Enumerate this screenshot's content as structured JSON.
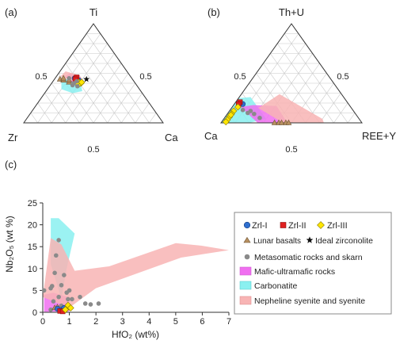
{
  "colors": {
    "zrl1": "#2f6fcf",
    "zrl2": "#e02020",
    "zrl3": "#ffe600",
    "lunar": "#b89060",
    "metasomatic": "#8a8a8a",
    "mafic": "#f06ef0",
    "carbonatite": "#8af0f0",
    "nepheline": "#f8b4b4",
    "grid": "#c8c8c8"
  },
  "panels": {
    "a": {
      "label": "(a)",
      "vertex_top": "Ti",
      "vertex_left": "Zr",
      "vertex_right": "Ca",
      "tick_left": "0.5",
      "tick_right": "0.5",
      "tick_bottom": "0.5"
    },
    "b": {
      "label": "(b)",
      "vertex_top": "Th+U",
      "vertex_left": "Ca",
      "vertex_right": "REE+Y",
      "tick_left": "0.5",
      "tick_right": "0.5",
      "tick_bottom": "0.5"
    },
    "c": {
      "label": "(c)"
    }
  },
  "legend": {
    "zrl1": "Zrl-I",
    "zrl2": "Zrl-II",
    "zrl3": "Zrl-III",
    "lunar": "Lunar basalts",
    "ideal": "Ideal zirconolite",
    "metasomatic": "Metasomatic rocks and skarn",
    "mafic": "Mafic-ultramafic rocks",
    "carbonatite": "Carbonatite",
    "nepheline": "Nepheline syenite and syenite"
  },
  "chart_data": [
    {
      "type": "scatter",
      "panel": "a",
      "ternary": true,
      "components": [
        "Zr",
        "Ti",
        "Ca"
      ],
      "series": [
        {
          "name": "Zrl-I",
          "points": [
            [
              0.4,
              0.44,
              0.16
            ],
            [
              0.41,
              0.45,
              0.14
            ],
            [
              0.39,
              0.43,
              0.18
            ]
          ]
        },
        {
          "name": "Zrl-II",
          "points": [
            [
              0.4,
              0.45,
              0.15
            ],
            [
              0.39,
              0.46,
              0.15
            ],
            [
              0.41,
              0.44,
              0.15
            ]
          ]
        },
        {
          "name": "Zrl-III",
          "points": [
            [
              0.4,
              0.41,
              0.19
            ],
            [
              0.39,
              0.4,
              0.21
            ],
            [
              0.41,
              0.39,
              0.2
            ],
            [
              0.42,
              0.4,
              0.18
            ],
            [
              0.38,
              0.41,
              0.21
            ]
          ]
        },
        {
          "name": "Lunar basalts",
          "points": [
            [
              0.52,
              0.44,
              0.04
            ],
            [
              0.5,
              0.43,
              0.07
            ],
            [
              0.49,
              0.45,
              0.06
            ],
            [
              0.47,
              0.41,
              0.12
            ],
            [
              0.46,
              0.43,
              0.11
            ]
          ]
        },
        {
          "name": "Ideal zirconolite",
          "points": [
            [
              0.33,
              0.44,
              0.23
            ]
          ]
        },
        {
          "name": "Metasomatic rocks and skarn",
          "points": [
            [
              0.45,
              0.45,
              0.1
            ],
            [
              0.44,
              0.4,
              0.16
            ],
            [
              0.43,
              0.37,
              0.2
            ],
            [
              0.46,
              0.38,
              0.16
            ],
            [
              0.41,
              0.42,
              0.17
            ]
          ]
        }
      ],
      "fields": [
        {
          "name": "Carbonatite",
          "polygon": [
            [
              0.56,
              0.34,
              0.1
            ],
            [
              0.52,
              0.42,
              0.06
            ],
            [
              0.45,
              0.45,
              0.1
            ],
            [
              0.4,
              0.38,
              0.22
            ],
            [
              0.42,
              0.32,
              0.26
            ],
            [
              0.5,
              0.3,
              0.2
            ]
          ]
        },
        {
          "name": "Mafic-ultramafic rocks",
          "polygon": [
            [
              0.47,
              0.47,
              0.06
            ],
            [
              0.42,
              0.5,
              0.08
            ],
            [
              0.36,
              0.46,
              0.18
            ],
            [
              0.4,
              0.41,
              0.19
            ],
            [
              0.46,
              0.41,
              0.13
            ]
          ]
        },
        {
          "name": "Nepheline syenite and syenite",
          "polygon": [
            [
              0.5,
              0.47,
              0.03
            ],
            [
              0.44,
              0.52,
              0.04
            ],
            [
              0.36,
              0.48,
              0.16
            ],
            [
              0.36,
              0.44,
              0.2
            ],
            [
              0.44,
              0.42,
              0.14
            ]
          ]
        }
      ]
    },
    {
      "type": "scatter",
      "panel": "b",
      "ternary": true,
      "components": [
        "Ca",
        "Th+U",
        "REE+Y"
      ],
      "series": [
        {
          "name": "Zrl-I",
          "points": [
            [
              0.77,
              0.2,
              0.03
            ],
            [
              0.75,
              0.19,
              0.06
            ],
            [
              0.79,
              0.17,
              0.04
            ]
          ]
        },
        {
          "name": "Zrl-II",
          "points": [
            [
              0.76,
              0.21,
              0.03
            ],
            [
              0.78,
              0.19,
              0.03
            ]
          ]
        },
        {
          "name": "Zrl-III",
          "points": [
            [
              0.8,
              0.16,
              0.04
            ],
            [
              0.85,
              0.12,
              0.03
            ],
            [
              0.88,
              0.09,
              0.03
            ],
            [
              0.91,
              0.06,
              0.03
            ],
            [
              0.94,
              0.03,
              0.03
            ],
            [
              0.96,
              0.01,
              0.03
            ],
            [
              0.89,
              0.08,
              0.03
            ]
          ]
        },
        {
          "name": "Lunar basalts",
          "points": [
            [
              0.62,
              0.0,
              0.38
            ],
            [
              0.59,
              0.0,
              0.41
            ],
            [
              0.57,
              0.0,
              0.43
            ],
            [
              0.54,
              0.0,
              0.46
            ],
            [
              0.52,
              0.0,
              0.48
            ]
          ]
        },
        {
          "name": "Metasomatic rocks and skarn",
          "points": [
            [
              0.78,
              0.13,
              0.09
            ],
            [
              0.76,
              0.1,
              0.14
            ],
            [
              0.72,
              0.09,
              0.19
            ],
            [
              0.7,
              0.05,
              0.25
            ],
            [
              0.73,
              0.12,
              0.15
            ]
          ]
        }
      ],
      "fields": [
        {
          "name": "Carbonatite",
          "polygon": [
            [
              1.0,
              0.0,
              0.0
            ],
            [
              0.75,
              0.25,
              0.0
            ],
            [
              0.66,
              0.26,
              0.08
            ],
            [
              0.66,
              0.04,
              0.3
            ],
            [
              0.8,
              0.0,
              0.2
            ]
          ]
        },
        {
          "name": "Mafic-ultramafic rocks",
          "polygon": [
            [
              0.78,
              0.16,
              0.06
            ],
            [
              0.68,
              0.18,
              0.14
            ],
            [
              0.52,
              0.17,
              0.31
            ],
            [
              0.53,
              0.0,
              0.47
            ],
            [
              0.74,
              0.0,
              0.26
            ]
          ]
        },
        {
          "name": "Nepheline syenite and syenite",
          "polygon": [
            [
              0.66,
              0.15,
              0.19
            ],
            [
              0.44,
              0.29,
              0.27
            ],
            [
              0.26,
              0.04,
              0.7
            ],
            [
              0.27,
              0.0,
              0.73
            ],
            [
              0.56,
              0.0,
              0.44
            ]
          ]
        }
      ]
    },
    {
      "type": "scatter",
      "panel": "c",
      "xlabel": "HfO₂ (wt%)",
      "ylabel": "Nb₂O₅ (wt %)",
      "xlim": [
        0,
        7
      ],
      "ylim": [
        0,
        25
      ],
      "xticks": [
        "0",
        "1",
        "2",
        "3",
        "4",
        "5",
        "6",
        "7"
      ],
      "yticks": [
        "0",
        "5",
        "10",
        "15",
        "20",
        "25"
      ],
      "series": [
        {
          "name": "Zrl-I",
          "points": [
            [
              0.55,
              0.8
            ],
            [
              0.7,
              0.6
            ],
            [
              0.8,
              1.0
            ]
          ]
        },
        {
          "name": "Zrl-II",
          "points": [
            [
              0.65,
              0.3
            ],
            [
              0.75,
              0.2
            ]
          ]
        },
        {
          "name": "Zrl-III",
          "points": [
            [
              0.9,
              0.9
            ],
            [
              1.0,
              1.2
            ],
            [
              0.85,
              0.6
            ],
            [
              0.95,
              1.6
            ],
            [
              1.05,
              1.0
            ]
          ]
        },
        {
          "name": "Lunar basalts",
          "points": [
            [
              0.45,
              1.0
            ],
            [
              0.55,
              1.2
            ],
            [
              0.6,
              0.8
            ]
          ]
        },
        {
          "name": "Metasomatic rocks and skarn",
          "points": [
            [
              0.05,
              5.0
            ],
            [
              0.6,
              16.5
            ],
            [
              0.5,
              13.0
            ],
            [
              0.45,
              9.0
            ],
            [
              0.35,
              6.0
            ],
            [
              0.3,
              5.5
            ],
            [
              0.7,
              6.2
            ],
            [
              0.8,
              8.5
            ],
            [
              0.9,
              4.5
            ],
            [
              1.0,
              5.0
            ],
            [
              0.95,
              3.0
            ],
            [
              1.1,
              3.0
            ],
            [
              1.4,
              3.5
            ],
            [
              1.6,
              2.0
            ],
            [
              1.8,
              1.8
            ],
            [
              2.1,
              2.0
            ],
            [
              0.6,
              3.5
            ],
            [
              0.4,
              2.5
            ],
            [
              0.3,
              0.6
            ],
            [
              0.7,
              1.5
            ]
          ]
        }
      ],
      "fields": [
        {
          "name": "Carbonatite",
          "polygon": [
            [
              0.3,
              21.5
            ],
            [
              0.6,
              21.5
            ],
            [
              1.2,
              18.0
            ],
            [
              0.9,
              10.0
            ],
            [
              0.7,
              3.0
            ],
            [
              0.3,
              11.0
            ]
          ]
        },
        {
          "name": "Mafic-ultramafic rocks",
          "polygon": [
            [
              0.05,
              4.0
            ],
            [
              0.4,
              4.5
            ],
            [
              0.95,
              3.5
            ],
            [
              1.0,
              0.2
            ],
            [
              0.05,
              0.1
            ]
          ]
        },
        {
          "name": "Nepheline syenite and syenite",
          "polygon": [
            [
              0.3,
              17.0
            ],
            [
              0.7,
              15.5
            ],
            [
              1.2,
              9.5
            ],
            [
              2.5,
              10.5
            ],
            [
              5.0,
              15.8
            ],
            [
              6.0,
              15.2
            ],
            [
              7.0,
              14.2
            ],
            [
              5.2,
              12.5
            ],
            [
              2.0,
              5.5
            ],
            [
              1.1,
              1.5
            ],
            [
              0.6,
              2.0
            ],
            [
              0.0,
              3.5
            ]
          ]
        }
      ]
    }
  ]
}
